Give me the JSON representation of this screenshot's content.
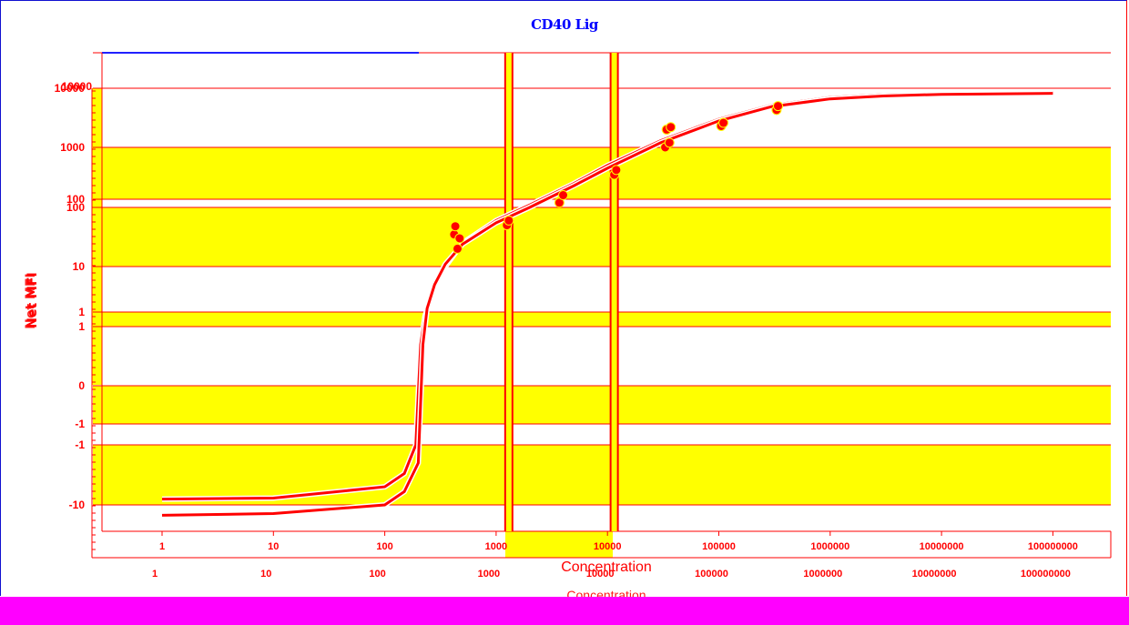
{
  "chart_data": {
    "type": "scatter",
    "title": "CD40 Lig",
    "xlabel": "Concentration",
    "ylabel": "Net MFI",
    "x_scale": "log",
    "xlim": [
      0.3,
      300000000
    ],
    "x_ticks": [
      "1",
      "10",
      "100",
      "1000",
      "10000",
      "100000",
      "1000000",
      "10000000",
      "100000000"
    ],
    "y_ticks": [
      "10000",
      "1000",
      "100",
      "100",
      "10",
      "1",
      "1",
      "0",
      "-1",
      "-1",
      "-10"
    ],
    "grid": "horizontal",
    "series": [
      {
        "kind": "curve",
        "x": [
          1,
          10,
          100,
          150,
          190,
          210,
          230,
          270,
          350,
          500,
          1000,
          2000,
          5000,
          10000,
          30000,
          100000,
          300000,
          1000000,
          3000000,
          10000000,
          100000000
        ],
        "y": [
          -8,
          -7.7,
          -5,
          -3,
          -1,
          0.5,
          1.5,
          4,
          10,
          25,
          60,
          110,
          250,
          500,
          1300,
          3000,
          5200,
          7000,
          7800,
          8200,
          8500
        ]
      },
      {
        "kind": "curve",
        "x": [
          1,
          10,
          100,
          150,
          200,
          220,
          240,
          280,
          350,
          500,
          1000,
          2000,
          5000,
          10000,
          30000,
          100000,
          300000,
          1000000,
          3000000,
          10000000,
          100000000
        ],
        "y": [
          -15,
          -14,
          -10,
          -6,
          -2,
          0.5,
          2,
          5,
          11,
          24,
          55,
          100,
          230,
          450,
          1200,
          2800,
          4900,
          6600,
          7400,
          7900,
          8200
        ]
      },
      {
        "kind": "points",
        "x": [
          1250,
          1300,
          3700,
          4000,
          11500,
          12000,
          33000,
          34000,
          36000,
          37000,
          105000,
          110000,
          330000,
          340000,
          420,
          450,
          470,
          430
        ],
        "y": [
          50,
          60,
          120,
          160,
          350,
          420,
          1000,
          2000,
          1200,
          2200,
          2300,
          2600,
          4300,
          5000,
          35,
          20,
          30,
          48
        ]
      }
    ],
    "reference_lines_x": [
      1300,
      11500
    ]
  },
  "colors": {
    "curve": "#ff0000",
    "band": "#ffff00",
    "title": "#0000ff",
    "bottom_bar": "#ff00ff"
  }
}
